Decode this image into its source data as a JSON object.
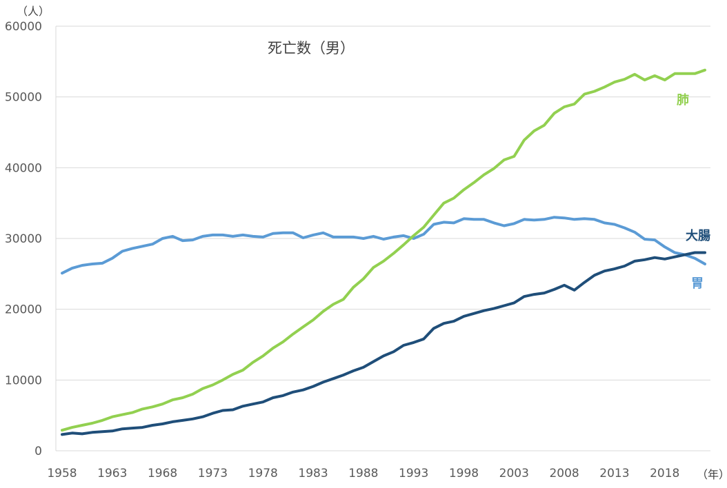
{
  "chart_data": {
    "type": "line",
    "title": "死亡数（男）",
    "y_unit_label": "（人）",
    "x_unit_label": "（年）",
    "ylim": [
      0,
      60000
    ],
    "y_ticks": [
      0,
      10000,
      20000,
      30000,
      40000,
      50000,
      60000
    ],
    "y_tick_labels": [
      "0",
      "10000",
      "20000",
      "30000",
      "40000",
      "50000",
      "60000"
    ],
    "x_tick_labels": [
      "1958",
      "1963",
      "1968",
      "1973",
      "1978",
      "1983",
      "1988",
      "1993",
      "1998",
      "2003",
      "2008",
      "2013",
      "2018"
    ],
    "grid": true,
    "x": [
      1958,
      1959,
      1960,
      1961,
      1962,
      1963,
      1964,
      1965,
      1966,
      1967,
      1968,
      1969,
      1970,
      1971,
      1972,
      1973,
      1974,
      1975,
      1976,
      1977,
      1978,
      1979,
      1980,
      1981,
      1982,
      1983,
      1984,
      1985,
      1986,
      1987,
      1988,
      1989,
      1990,
      1991,
      1992,
      1993,
      1994,
      1995,
      1996,
      1997,
      1998,
      1999,
      2000,
      2001,
      2002,
      2003,
      2004,
      2005,
      2006,
      2007,
      2008,
      2009,
      2010,
      2011,
      2012,
      2013,
      2014,
      2015,
      2016,
      2017,
      2018,
      2019,
      2020,
      2021,
      2022
    ],
    "series": [
      {
        "name": "肺",
        "color": "#92d050",
        "values": [
          2900,
          3300,
          3600,
          3900,
          4300,
          4800,
          5100,
          5400,
          5900,
          6200,
          6600,
          7200,
          7500,
          8000,
          8800,
          9300,
          10000,
          10800,
          11400,
          12500,
          13400,
          14500,
          15400,
          16500,
          17500,
          18500,
          19700,
          20700,
          21400,
          23100,
          24300,
          25900,
          26800,
          27900,
          29100,
          30400,
          31600,
          33300,
          35000,
          35700,
          36900,
          37900,
          39000,
          39900,
          41100,
          41600,
          43900,
          45200,
          46000,
          47700,
          48600,
          49000,
          50400,
          50800,
          51400,
          52100,
          52500,
          53200,
          52400,
          53000,
          52400,
          53300,
          53300,
          53300,
          53800
        ]
      },
      {
        "name": "胃",
        "color": "#5b9bd5",
        "values": [
          25100,
          25800,
          26200,
          26400,
          26500,
          27200,
          28200,
          28600,
          28900,
          29200,
          30000,
          30300,
          29700,
          29800,
          30300,
          30500,
          30500,
          30300,
          30500,
          30300,
          30200,
          30700,
          30800,
          30800,
          30100,
          30500,
          30800,
          30200,
          30200,
          30200,
          30000,
          30300,
          29900,
          30200,
          30400,
          30000,
          30600,
          32000,
          32300,
          32200,
          32800,
          32700,
          32700,
          32200,
          31800,
          32100,
          32700,
          32600,
          32700,
          33000,
          32900,
          32700,
          32800,
          32700,
          32200,
          32000,
          31500,
          30900,
          29900,
          29800,
          28800,
          28000,
          27700,
          27200,
          26400
        ]
      },
      {
        "name": "大腸",
        "color": "#1f4e79",
        "values": [
          2300,
          2500,
          2400,
          2600,
          2700,
          2800,
          3100,
          3200,
          3300,
          3600,
          3800,
          4100,
          4300,
          4500,
          4800,
          5300,
          5700,
          5800,
          6300,
          6600,
          6900,
          7500,
          7800,
          8300,
          8600,
          9100,
          9700,
          10200,
          10700,
          11300,
          11800,
          12600,
          13400,
          14000,
          14900,
          15300,
          15800,
          17300,
          18000,
          18300,
          19000,
          19400,
          19800,
          20100,
          20500,
          20900,
          21800,
          22100,
          22300,
          22800,
          23400,
          22700,
          23800,
          24800,
          25400,
          25700,
          26100,
          26800,
          27000,
          27300,
          27100,
          27400,
          27700,
          28000,
          28000
        ]
      }
    ]
  }
}
